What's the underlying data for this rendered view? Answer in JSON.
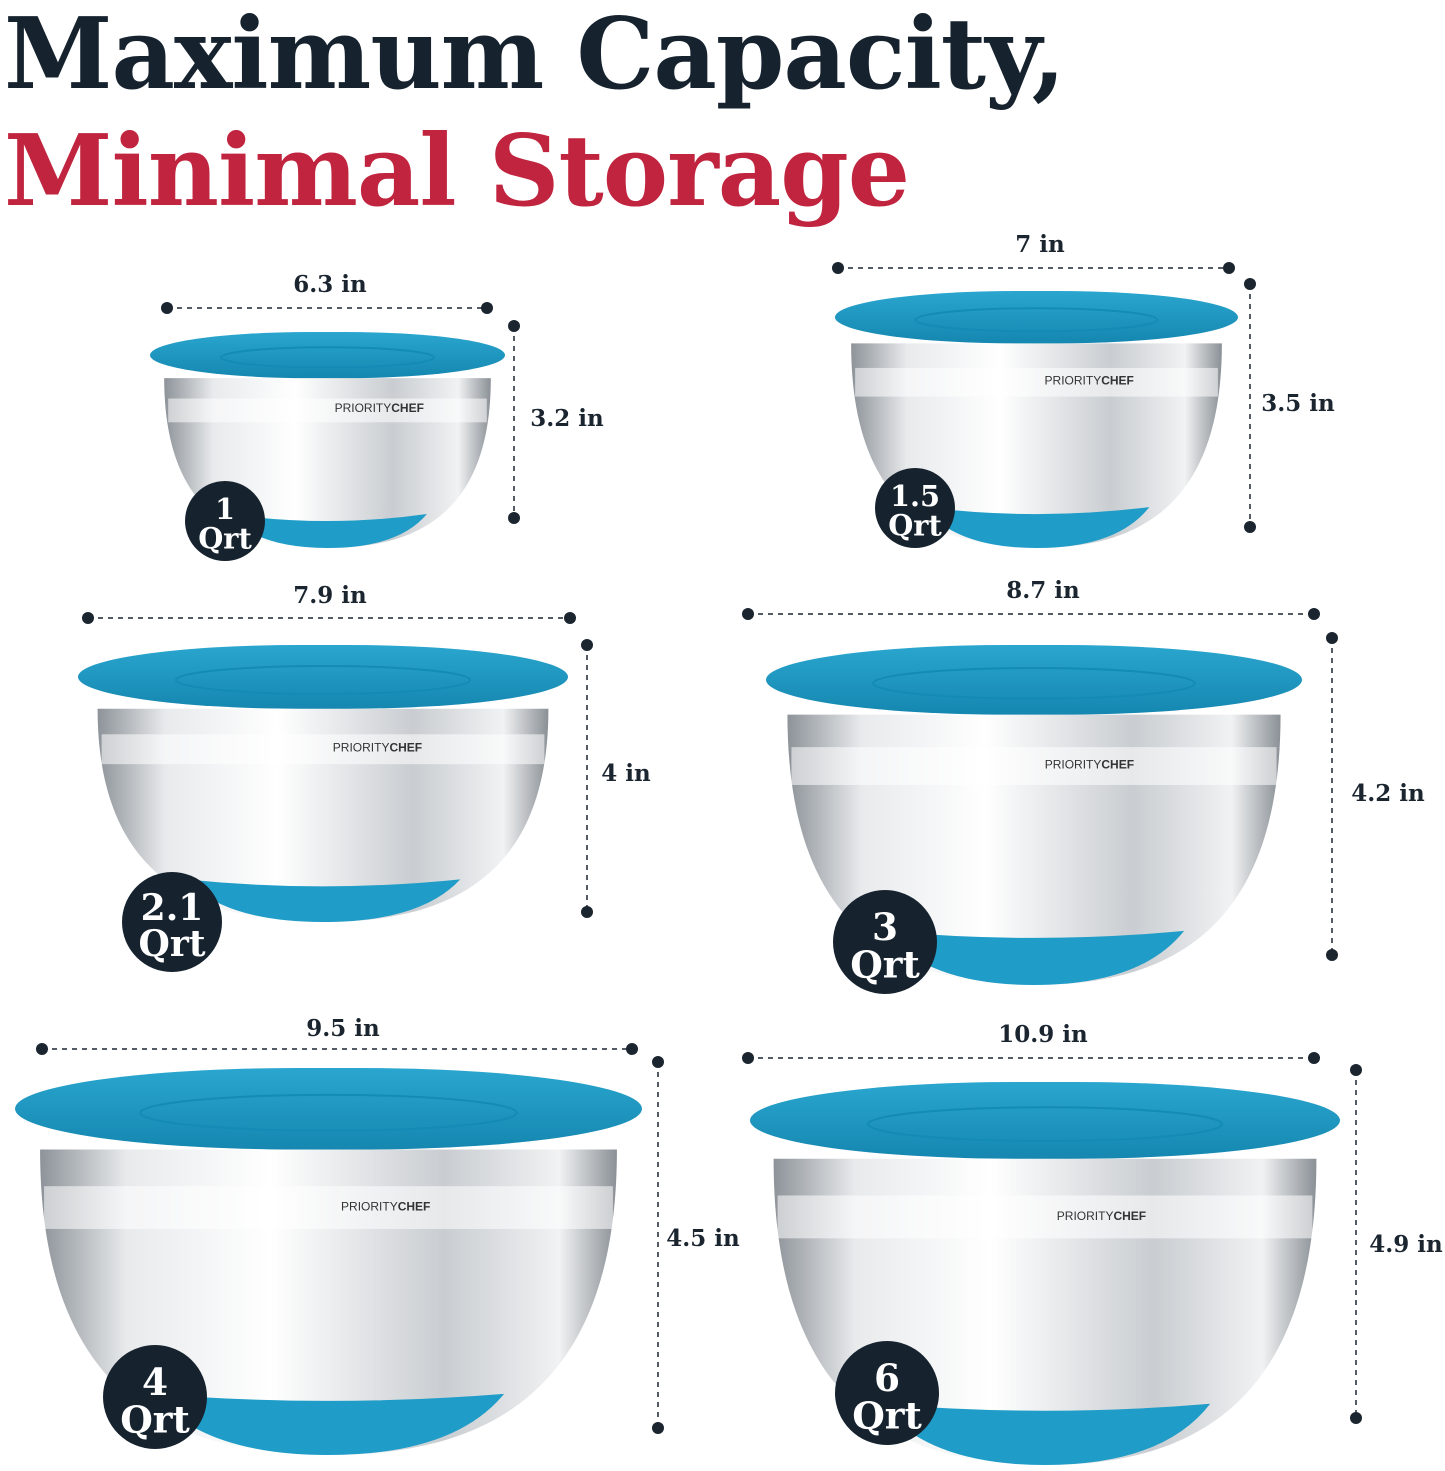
{
  "header": {
    "line1": "Maximum Capacity,",
    "line2": "Minimal Storage"
  },
  "brand": {
    "part1": "PRIORITY",
    "part2": "CHEF"
  },
  "bowls": [
    {
      "width": "6.3 in",
      "height": "3.2 in",
      "capacity": [
        "1",
        "Qrt"
      ]
    },
    {
      "width": "7 in",
      "height": "3.5 in",
      "capacity": [
        "1.5",
        "Qrt"
      ]
    },
    {
      "width": "7.9 in",
      "height": "4 in",
      "capacity": [
        "2.1",
        "Qrt"
      ]
    },
    {
      "width": "8.7 in",
      "height": "4.2 in",
      "capacity": [
        "3",
        "Qrt"
      ]
    },
    {
      "width": "9.5 in",
      "height": "4.5 in",
      "capacity": [
        "4",
        "Qrt"
      ]
    },
    {
      "width": "10.9 in",
      "height": "4.9 in",
      "capacity": [
        "6",
        "Qrt"
      ]
    }
  ]
}
